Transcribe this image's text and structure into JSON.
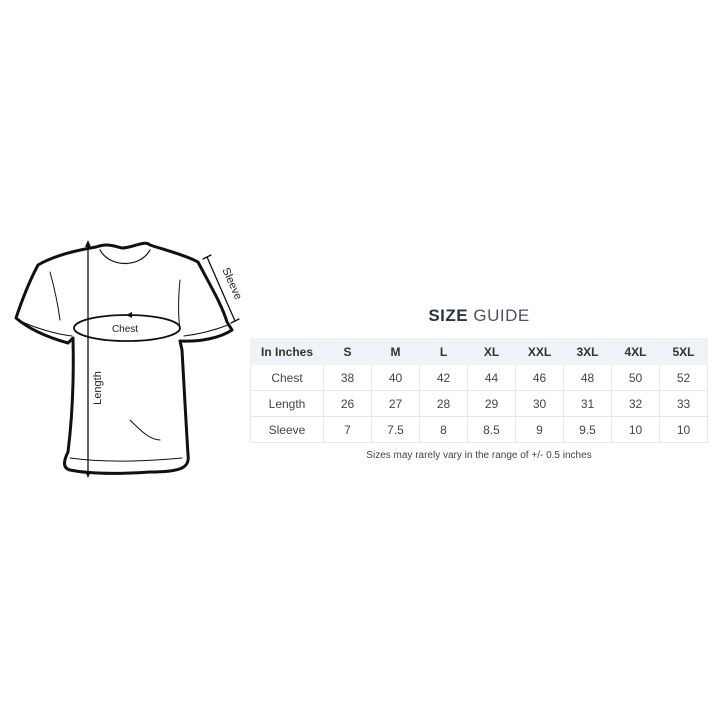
{
  "diagram": {
    "labels": {
      "chest": "Chest",
      "length": "Length",
      "sleeve": "Sleeve"
    }
  },
  "size_guide": {
    "title_bold": "SIZE",
    "title_light": "GUIDE",
    "header": [
      "In Inches",
      "S",
      "M",
      "L",
      "XL",
      "XXL",
      "3XL",
      "4XL",
      "5XL"
    ],
    "rows": [
      [
        "Chest",
        "38",
        "40",
        "42",
        "44",
        "46",
        "48",
        "50",
        "52"
      ],
      [
        "Length",
        "26",
        "27",
        "28",
        "29",
        "30",
        "31",
        "32",
        "33"
      ],
      [
        "Sleeve",
        "7",
        "7.5",
        "8",
        "8.5",
        "9",
        "9.5",
        "10",
        "10"
      ]
    ],
    "note": "Sizes may rarely vary in the range of +/- 0.5 inches",
    "header_bg": "#eef3f7"
  }
}
